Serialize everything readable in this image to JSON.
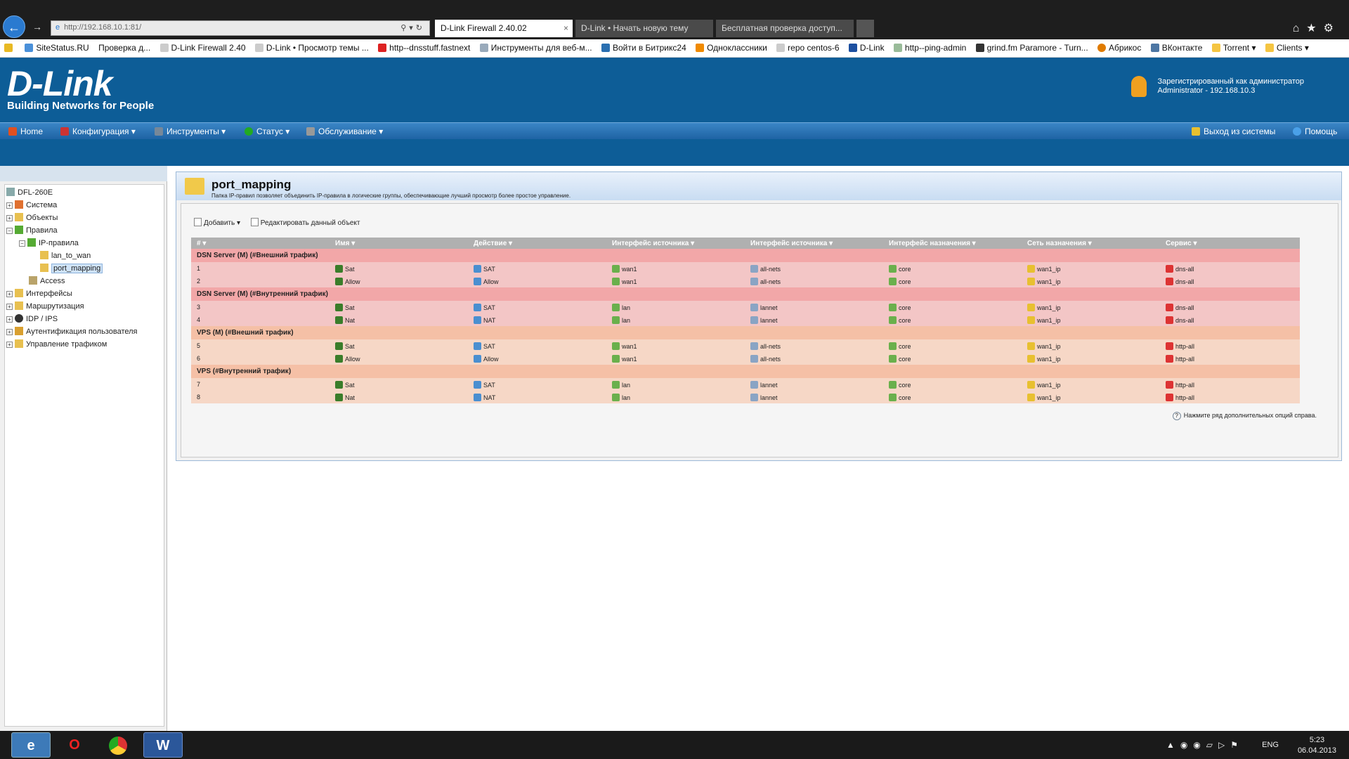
{
  "browser": {
    "url": "http://192.168.10.1:81/",
    "tabs": [
      {
        "label": "D-Link Firewall 2.40.02",
        "active": true
      },
      {
        "label": "D-Link • Начать новую тему",
        "active": false
      },
      {
        "label": "Бесплатная проверка доступ...",
        "active": false
      }
    ],
    "favorites": [
      "SiteStatus.RU",
      "Проверка д...",
      "D-Link Firewall 2.40",
      "D-Link • Просмотр темы ...",
      "http--dnsstuff.fastnext",
      "Инструменты для веб-м...",
      "Войти в Битрикс24",
      "Одноклассники",
      "repo centos-6",
      "D-Link",
      "http--ping-admin",
      "grind.fm Paramore - Turn...",
      "Абрикос",
      "ВКонтакте",
      "Torrent ▾",
      "Clients ▾"
    ]
  },
  "header": {
    "logo": "D-Link",
    "logo_sub": "Building Networks for People",
    "user_line1": "Зарегистрированный как администратор",
    "user_line2": "Administrator - 192.168.10.3"
  },
  "menu": {
    "home": "Home",
    "config": "Конфигурация ▾",
    "tools": "Инструменты ▾",
    "status": "Статус ▾",
    "maint": "Обслуживание ▾",
    "logout": "Выход из системы",
    "help": "Помощь"
  },
  "tree": {
    "root": "DFL-260E",
    "system": "Система",
    "objects": "Объекты",
    "rules": "Правила",
    "ip_rules": "IP-правила",
    "lan_to_wan": "lan_to_wan",
    "port_mapping": "port_mapping",
    "access": "Access",
    "interfaces": "Интерфейсы",
    "routing": "Маршрутизация",
    "idp": "IDP / IPS",
    "auth": "Аутентификация пользователя",
    "traffic": "Управление трафиком"
  },
  "page": {
    "title": "port_mapping",
    "description": "Папка IP-правил позволяет объединить IP-правила в логические группы, обеспечивающие лучший просмотр более простое управление.",
    "add": "Добавить ▾",
    "edit": "Редактировать данный объект",
    "help_hint": "Нажмите ряд дополнительных опций справа."
  },
  "table": {
    "columns": [
      "# ▾",
      "Имя ▾",
      "Действие ▾",
      "Интерфейс источника ▾",
      "Интерфейс источника ▾",
      "Интерфейс назначения ▾",
      "Сеть назначения ▾",
      "Сервис ▾"
    ],
    "groups": [
      {
        "title": "DSN Server (M) (#Внешний трафик)",
        "color": "#f2a7a8",
        "row_color": "#f3c6c6",
        "rows": [
          {
            "n": "1",
            "name": "Sat",
            "action": "SAT",
            "src_if": "wan1",
            "src_net": "all-nets",
            "dst_if": "core",
            "dst_net": "wan1_ip",
            "svc": "dns-all"
          },
          {
            "n": "2",
            "name": "Allow",
            "action": "Allow",
            "src_if": "wan1",
            "src_net": "all-nets",
            "dst_if": "core",
            "dst_net": "wan1_ip",
            "svc": "dns-all"
          }
        ]
      },
      {
        "title": "DSN Server (M) (#Внутренний трафик)",
        "color": "#f2a7a8",
        "row_color": "#f3c6c6",
        "rows": [
          {
            "n": "3",
            "name": "Sat",
            "action": "SAT",
            "src_if": "lan",
            "src_net": "lannet",
            "dst_if": "core",
            "dst_net": "wan1_ip",
            "svc": "dns-all"
          },
          {
            "n": "4",
            "name": "Nat",
            "action": "NAT",
            "src_if": "lan",
            "src_net": "lannet",
            "dst_if": "core",
            "dst_net": "wan1_ip",
            "svc": "dns-all"
          }
        ]
      },
      {
        "title": "VPS (M) (#Внешний трафик)",
        "color": "#f5c0a6",
        "row_color": "#f6d7c6",
        "rows": [
          {
            "n": "5",
            "name": "Sat",
            "action": "SAT",
            "src_if": "wan1",
            "src_net": "all-nets",
            "dst_if": "core",
            "dst_net": "wan1_ip",
            "svc": "http-all"
          },
          {
            "n": "6",
            "name": "Allow",
            "action": "Allow",
            "src_if": "wan1",
            "src_net": "all-nets",
            "dst_if": "core",
            "dst_net": "wan1_ip",
            "svc": "http-all"
          }
        ]
      },
      {
        "title": "VPS (#Внутренний трафик)",
        "color": "#f5c0a6",
        "row_color": "#f6d7c6",
        "rows": [
          {
            "n": "7",
            "name": "Sat",
            "action": "SAT",
            "src_if": "lan",
            "src_net": "lannet",
            "dst_if": "core",
            "dst_net": "wan1_ip",
            "svc": "http-all"
          },
          {
            "n": "8",
            "name": "Nat",
            "action": "NAT",
            "src_if": "lan",
            "src_net": "lannet",
            "dst_if": "core",
            "dst_net": "wan1_ip",
            "svc": "http-all"
          }
        ]
      }
    ]
  },
  "taskbar": {
    "lang": "ENG",
    "time": "5:23",
    "date": "06.04.2013"
  }
}
